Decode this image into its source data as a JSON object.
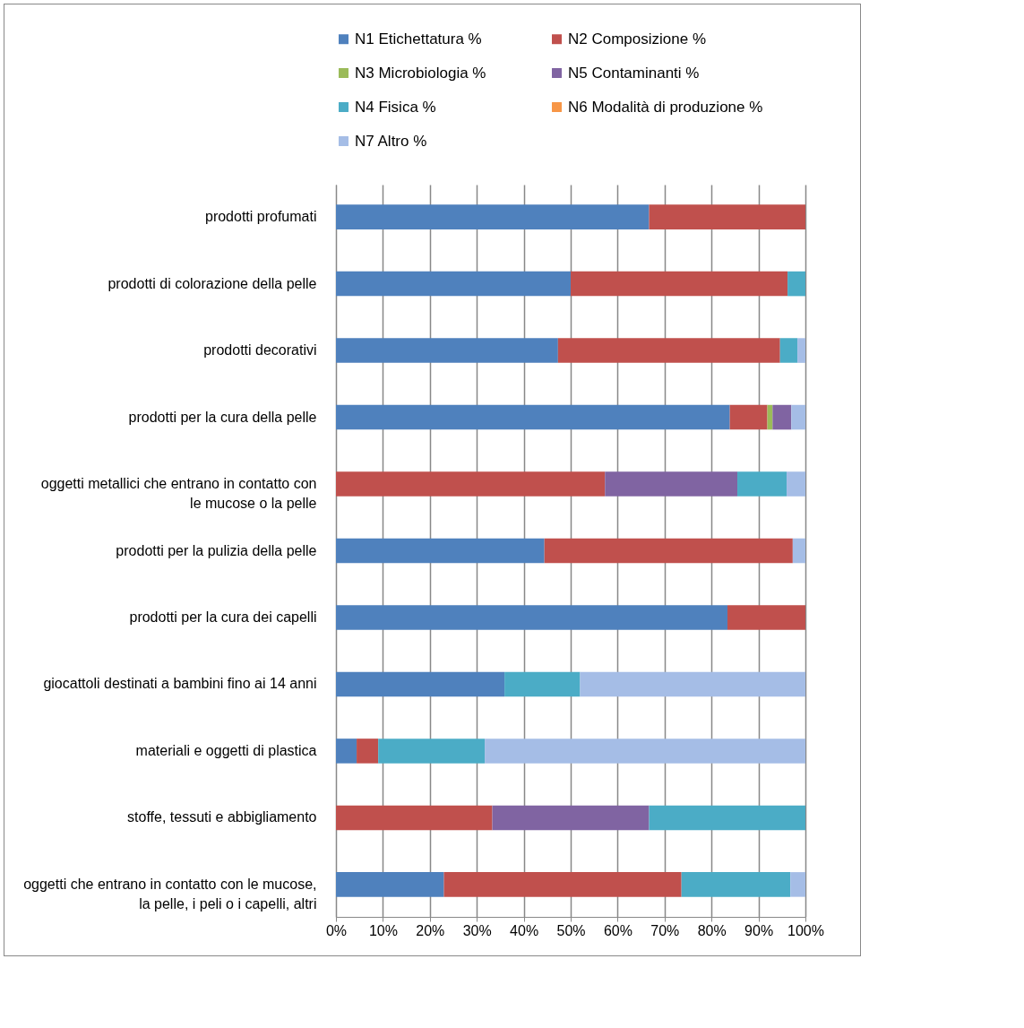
{
  "chart_data": {
    "type": "bar",
    "orientation": "horizontal",
    "stacked": true,
    "grid": "x",
    "legend": "top",
    "categories": [
      "prodotti profumati",
      "prodotti di colorazione della pelle",
      "prodotti decorativi",
      "prodotti per la cura della pelle",
      "oggetti metallici che entrano in contatto con le mucose o la pelle",
      "prodotti per la pulizia della pelle",
      "prodotti per la cura dei capelli",
      "giocattoli destinati a bambini fino ai 14 anni",
      "materiali e oggetti di plastica",
      "stoffe, tessuti e abbigliamento",
      "oggetti che entrano in contatto con le mucose, la pelle, i peli o i capelli, altri"
    ],
    "series": [
      {
        "name": "N1 Etichettatura %",
        "color": "#4f81bd",
        "values": [
          66.7,
          50,
          47.3,
          83.9,
          null,
          44.4,
          83.4,
          35.9,
          4.4,
          null,
          23.0
        ]
      },
      {
        "name": "N2 Composizione %",
        "color": "#c0504d",
        "values": [
          33.3,
          46.2,
          47.3,
          8.0,
          57.3,
          52.9,
          16.6,
          null,
          4.6,
          33.3,
          50.6
        ]
      },
      {
        "name": "N3 Microbiologia %",
        "color": "#9bbb59",
        "values": [
          null,
          null,
          null,
          1.1,
          null,
          null,
          null,
          null,
          null,
          null,
          null
        ]
      },
      {
        "name": "N5 Contaminanti %",
        "color": "#8064a2",
        "values": [
          null,
          null,
          null,
          4.0,
          28.2,
          null,
          null,
          null,
          null,
          33.4,
          null
        ]
      },
      {
        "name": "N4 Fisica %",
        "color": "#4bacc6",
        "values": [
          null,
          3.8,
          3.7,
          null,
          10.5,
          null,
          null,
          16.1,
          22.7,
          33.3,
          23.2
        ]
      },
      {
        "name": "N6 Modalità di produzione %",
        "color": "#f79646",
        "values": [
          null,
          null,
          null,
          null,
          null,
          null,
          null,
          null,
          null,
          null,
          null
        ]
      },
      {
        "name": "N7 Altro %",
        "color": "#a5bde6",
        "values": [
          null,
          null,
          1.7,
          3.0,
          4.0,
          2.7,
          null,
          48.0,
          68.3,
          null,
          3.2
        ]
      }
    ],
    "xlim": [
      0,
      100
    ],
    "xticks": [
      {
        "value": 0,
        "label": "0%"
      },
      {
        "value": 10,
        "label": "10%"
      },
      {
        "value": 20,
        "label": "20%"
      },
      {
        "value": 30,
        "label": "30%"
      },
      {
        "value": 40,
        "label": "40%"
      },
      {
        "value": 50,
        "label": "50%"
      },
      {
        "value": 60,
        "label": "60%"
      },
      {
        "value": 70,
        "label": "70%"
      },
      {
        "value": 80,
        "label": "80%"
      },
      {
        "value": 90,
        "label": "90%"
      },
      {
        "value": 100,
        "label": "100%"
      }
    ]
  }
}
